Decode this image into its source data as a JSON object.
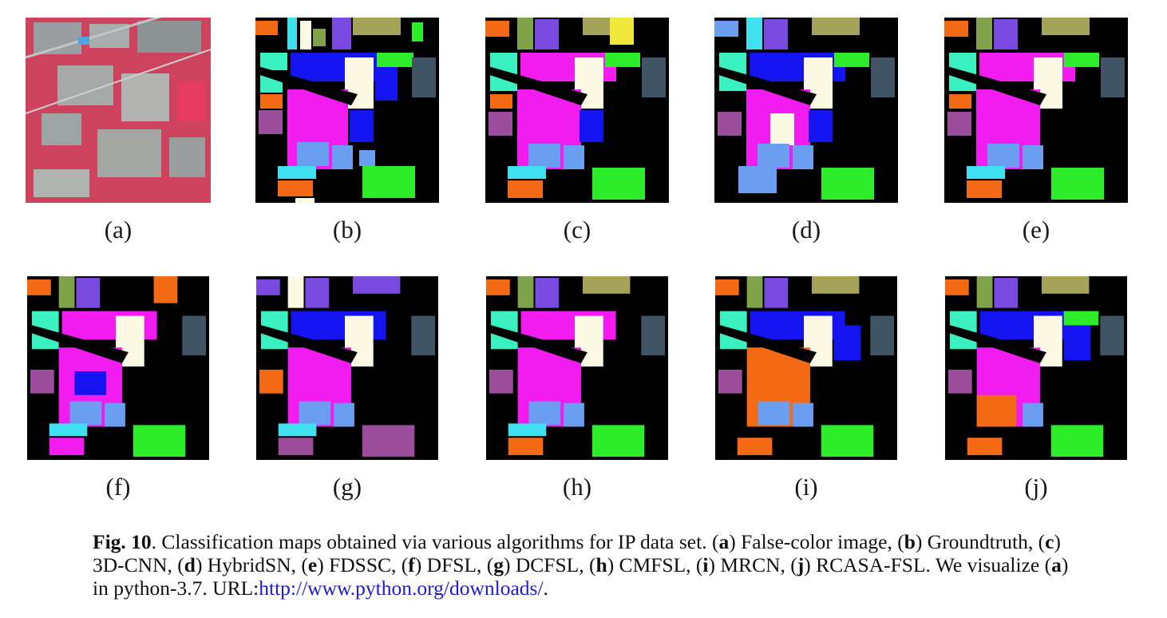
{
  "figure": {
    "panels": [
      {
        "id": "a",
        "label": "(a)",
        "kind": "false-color"
      },
      {
        "id": "b",
        "label": "(b)",
        "kind": "groundtruth"
      },
      {
        "id": "c",
        "label": "(c)",
        "kind": "map"
      },
      {
        "id": "d",
        "label": "(d)",
        "kind": "map"
      },
      {
        "id": "e",
        "label": "(e)",
        "kind": "map"
      },
      {
        "id": "f",
        "label": "(f)",
        "kind": "map"
      },
      {
        "id": "g",
        "label": "(g)",
        "kind": "map"
      },
      {
        "id": "h",
        "label": "(h)",
        "kind": "map"
      },
      {
        "id": "i",
        "label": "(i)",
        "kind": "map"
      },
      {
        "id": "j",
        "label": "(j)",
        "kind": "map"
      }
    ],
    "class_colors": {
      "background": "#000000",
      "orange": "#f46a14",
      "yellow_olive": "#a5a35a",
      "green": "#2ded2a",
      "magenta": "#f21cf0",
      "blue": "#1414f0",
      "light_blue": "#6a9ef0",
      "cyan": "#3fe0f0",
      "mint": "#3af0c0",
      "cream": "#fbf8e4",
      "slate": "#3f5565",
      "purple": "#9b4d9b",
      "olive_green": "#7ea34a",
      "violet": "#7a4ae0",
      "brown": "#8a5a3a",
      "yellow": "#f0e83a"
    }
  },
  "caption": {
    "fig_label": "Fig. 10",
    "dot1": ".",
    "text1": "  Classification maps obtained via various algorithms for IP data set. (",
    "a1": "a",
    "t2": ") False-color image, (",
    "b": "b",
    "t3": ") Groundtruth, (",
    "c": "c",
    "t4": ") 3D-CNN, (",
    "d": "d",
    "t5": ") HybridSN, (",
    "e": "e",
    "t6": ") FDSSC, (",
    "f": "f",
    "t7": ") DFSL, (",
    "g": "g",
    "t8": ") DCFSL, (",
    "h": "h",
    "t9": ") CMFSL, (",
    "i": "i",
    "t10": ") MRCN, (",
    "j": "j",
    "t11": ") RCASA-FSL. We visualize (",
    "a2": "a",
    "t12": ") in python-3.7. URL:",
    "url": "http://www.python.org/downloads/",
    "end": "."
  }
}
